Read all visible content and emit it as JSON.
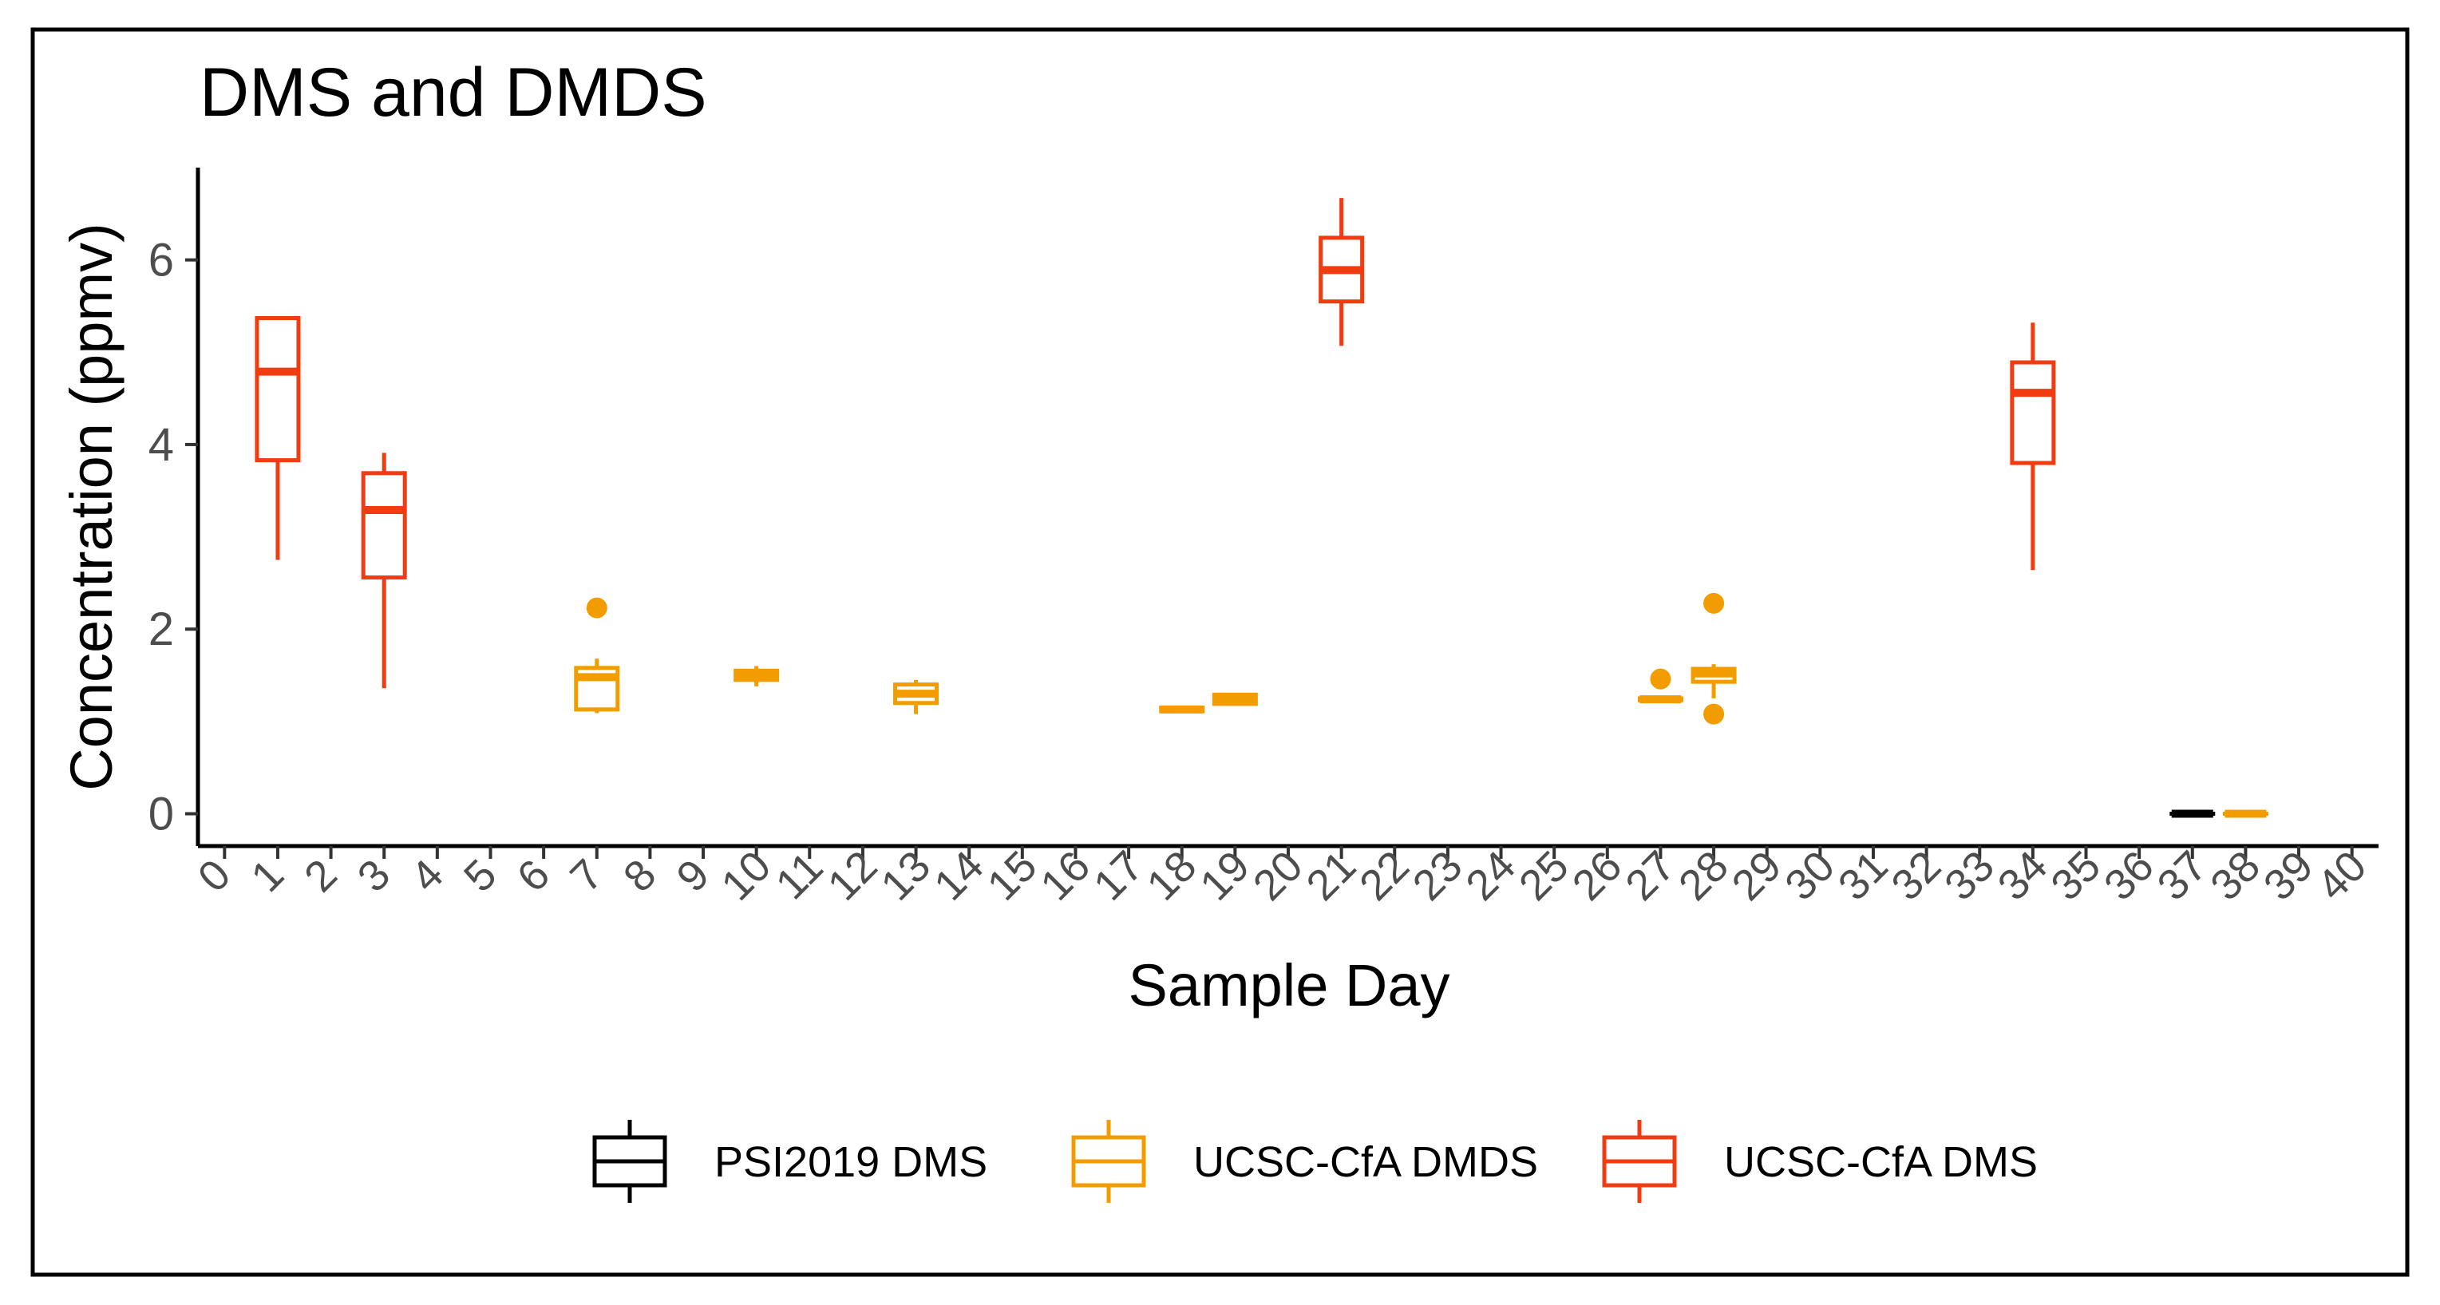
{
  "chart_data": {
    "type": "boxplot",
    "title": "DMS and DMDS",
    "xlabel": "Sample Day",
    "ylabel": "Concentration (ppmv)",
    "x_ticks": [
      0,
      1,
      2,
      3,
      4,
      5,
      6,
      7,
      8,
      9,
      10,
      11,
      12,
      13,
      14,
      15,
      16,
      17,
      18,
      19,
      20,
      21,
      22,
      23,
      24,
      25,
      26,
      27,
      28,
      29,
      30,
      31,
      32,
      33,
      34,
      35,
      36,
      37,
      38,
      39,
      40
    ],
    "y_ticks": [
      0,
      2,
      4,
      6
    ],
    "xlim": [
      -0.5,
      40.5
    ],
    "ylim": [
      -0.35,
      7.0
    ],
    "legend_position": "bottom",
    "series": [
      {
        "name": "PSI2019 DMS",
        "color": "#000000",
        "boxes": [
          {
            "x": 37,
            "min": 0,
            "q1": 0,
            "median": 0,
            "q3": 0,
            "max": 0,
            "outliers": []
          }
        ]
      },
      {
        "name": "UCSC-CfA DMDS",
        "color": "#F39C00",
        "boxes": [
          {
            "x": 7,
            "min": 1.09,
            "q1": 1.13,
            "median": 1.48,
            "q3": 1.58,
            "max": 1.68,
            "outliers": [
              2.23
            ]
          },
          {
            "x": 10,
            "min": 1.38,
            "q1": 1.45,
            "median": 1.5,
            "q3": 1.55,
            "max": 1.6,
            "outliers": []
          },
          {
            "x": 13,
            "min": 1.08,
            "q1": 1.2,
            "median": 1.3,
            "q3": 1.4,
            "max": 1.45,
            "outliers": []
          },
          {
            "x": 18,
            "min": 1.1,
            "q1": 1.11,
            "median": 1.13,
            "q3": 1.15,
            "max": 1.16,
            "outliers": []
          },
          {
            "x": 19,
            "min": 1.18,
            "q1": 1.19,
            "median": 1.24,
            "q3": 1.29,
            "max": 1.3,
            "outliers": []
          },
          {
            "x": 27,
            "min": 1.23,
            "q1": 1.23,
            "median": 1.24,
            "q3": 1.25,
            "max": 1.25,
            "outliers": [
              1.46
            ]
          },
          {
            "x": 28,
            "min": 1.25,
            "q1": 1.43,
            "median": 1.52,
            "q3": 1.57,
            "max": 1.62,
            "outliers": [
              2.28,
              1.08
            ]
          },
          {
            "x": 38,
            "min": 0,
            "q1": 0,
            "median": 0,
            "q3": 0,
            "max": 0,
            "outliers": []
          }
        ]
      },
      {
        "name": "UCSC-CfA DMS",
        "color": "#F03C10",
        "boxes": [
          {
            "x": 1,
            "min": 2.75,
            "q1": 3.83,
            "median": 4.79,
            "q3": 5.37,
            "max": 5.37,
            "outliers": []
          },
          {
            "x": 3,
            "min": 1.36,
            "q1": 2.56,
            "median": 3.29,
            "q3": 3.69,
            "max": 3.91,
            "outliers": []
          },
          {
            "x": 21,
            "min": 5.07,
            "q1": 5.55,
            "median": 5.89,
            "q3": 6.24,
            "max": 6.67,
            "outliers": []
          },
          {
            "x": 34,
            "min": 2.64,
            "q1": 3.8,
            "median": 4.56,
            "q3": 4.89,
            "max": 5.32,
            "outliers": []
          }
        ]
      }
    ]
  }
}
